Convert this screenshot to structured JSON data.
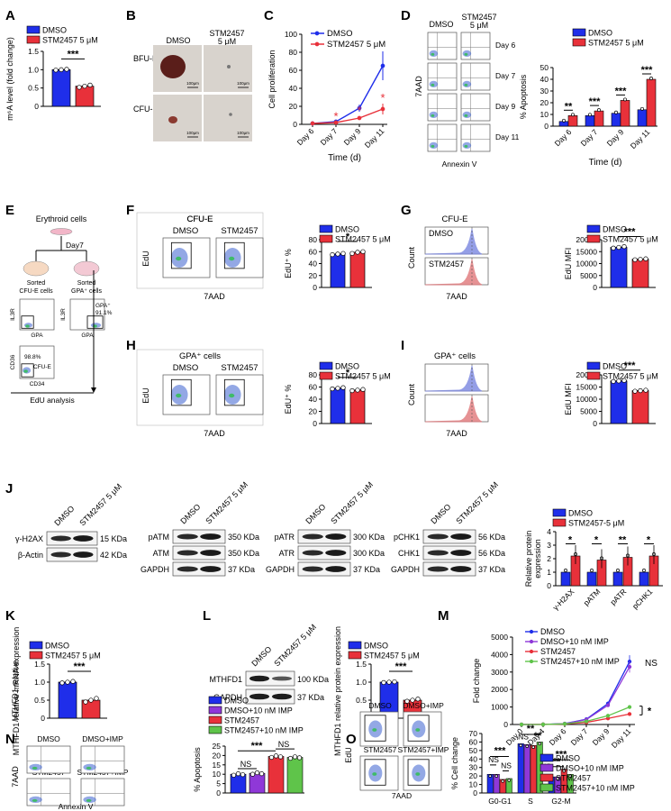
{
  "colors": {
    "dmso": "#1f2eea",
    "stm": "#e8313a",
    "dmso_imp": "#8f38d8",
    "stm_imp": "#5fc44a",
    "axis": "#000000",
    "flow_dot": "#3a60d0",
    "hist_blue": "#7a86e0",
    "hist_red": "#e0787a"
  },
  "panel_letters": [
    "A",
    "B",
    "C",
    "D",
    "E",
    "F",
    "G",
    "H",
    "I",
    "J",
    "K",
    "L",
    "M",
    "N",
    "O"
  ],
  "chart_data": [
    {
      "id": "A",
      "type": "bar",
      "ylabel": "m⁶A level (fold change)",
      "ylim": [
        0,
        1.5
      ],
      "yticks": [
        "0",
        "0.5",
        "1.0",
        "1.5"
      ],
      "legend": [
        "DMSO",
        "STM2457 5 μM"
      ],
      "values": [
        1.0,
        0.55
      ],
      "sig": "***",
      "points": [
        [
          0.99,
          1.0,
          1.01
        ],
        [
          0.52,
          0.55,
          0.58
        ]
      ]
    },
    {
      "id": "C",
      "type": "line",
      "ylabel": "Cell proliferation",
      "xlabel": "Time (d)",
      "x": [
        "Day 6",
        "Day 7",
        "Day 9",
        "Day 11"
      ],
      "ylim": [
        0,
        100
      ],
      "yticks": [
        "0",
        "20",
        "40",
        "60",
        "80",
        "100"
      ],
      "series": [
        {
          "name": "DMSO",
          "values": [
            1,
            3,
            18,
            65
          ],
          "err": [
            0.3,
            1,
            4,
            16
          ]
        },
        {
          "name": "STM2457 5 μM",
          "values": [
            1,
            2,
            7,
            17
          ],
          "err": [
            0.3,
            0.5,
            2,
            6
          ]
        }
      ],
      "sig": [
        "*",
        "*",
        "*"
      ]
    },
    {
      "id": "D",
      "type": "bar",
      "ylabel": "% Apoptosis",
      "xlabel": "Time (d)",
      "categories": [
        "Day 6",
        "Day 7",
        "Day 9",
        "Day 11"
      ],
      "ylim": [
        0,
        50
      ],
      "yticks": [
        "0",
        "10",
        "20",
        "30",
        "40",
        "50"
      ],
      "legend": [
        "DMSO",
        "STM2457 5 μM"
      ],
      "series": [
        {
          "name": "DMSO",
          "values": [
            4,
            9,
            11,
            14
          ]
        },
        {
          "name": "STM2457 5 μM",
          "values": [
            9,
            13,
            22,
            40
          ]
        }
      ],
      "sig": [
        "**",
        "***",
        "***",
        "***"
      ]
    },
    {
      "id": "F",
      "type": "bar",
      "ylabel": "EdU⁺ %",
      "ylim": [
        0,
        80
      ],
      "yticks": [
        "0",
        "20",
        "40",
        "60",
        "80"
      ],
      "legend": [
        "DMSO",
        "STM2457 5 μM"
      ],
      "values": [
        56,
        59
      ],
      "sig": "*",
      "points": [
        [
          55,
          56,
          57
        ],
        [
          57,
          59,
          60
        ]
      ]
    },
    {
      "id": "G",
      "type": "bar",
      "ylabel": "EdU MFI",
      "ylim": [
        0,
        20000
      ],
      "yticks": [
        "0",
        "5000",
        "10000",
        "15000",
        "20000"
      ],
      "legend": [
        "DMSO",
        "STM2457 5 μM"
      ],
      "values": [
        16800,
        11800
      ],
      "sig": "***",
      "points": [
        [
          16500,
          16800,
          17100
        ],
        [
          11600,
          11800,
          12000
        ]
      ]
    },
    {
      "id": "H",
      "type": "bar",
      "ylabel": "EdU⁺ %",
      "ylim": [
        0,
        80
      ],
      "yticks": [
        "0",
        "20",
        "40",
        "60",
        "80"
      ],
      "legend": [
        "DMSO",
        "STM2457 5 μM"
      ],
      "values": [
        58,
        55
      ],
      "sig": "*",
      "points": [
        [
          57,
          58,
          59
        ],
        [
          54,
          55,
          56
        ]
      ]
    },
    {
      "id": "I",
      "type": "bar",
      "ylabel": "EdU MFI",
      "ylim": [
        0,
        20000
      ],
      "yticks": [
        "0",
        "5000",
        "10000",
        "15000",
        "20000"
      ],
      "legend": [
        "DMSO",
        "STM2457 5 μM"
      ],
      "values": [
        17500,
        13500
      ],
      "sig": "***",
      "points": [
        [
          17300,
          17500,
          17700
        ],
        [
          13300,
          13500,
          13700
        ]
      ]
    },
    {
      "id": "J",
      "type": "bar",
      "ylabel": "Relative protein expression",
      "ylim": [
        0,
        4
      ],
      "yticks": [
        "0",
        "1",
        "2",
        "3",
        "4"
      ],
      "categories": [
        "γ-H2AX",
        "pATM",
        "pATR",
        "pCHK1"
      ],
      "legend": [
        "DMSO",
        "STM2457-5 μM"
      ],
      "series": [
        {
          "name": "DMSO",
          "values": [
            1,
            1,
            1,
            1
          ]
        },
        {
          "name": "STM2457-5 μM",
          "values": [
            2.2,
            1.9,
            2.1,
            2.2
          ]
        }
      ],
      "sig": [
        "*",
        "*",
        "**",
        "*"
      ]
    },
    {
      "id": "K",
      "type": "bar",
      "ylabel": "MTHFD1 relative mRNA expression",
      "ylim": [
        0,
        1.5
      ],
      "yticks": [
        "0",
        "0.5",
        "1.0",
        "1.5"
      ],
      "legend": [
        "DMSO",
        "STM2457 5 μM"
      ],
      "values": [
        1.0,
        0.5
      ],
      "sig": "***",
      "points": [
        [
          0.98,
          1.0,
          1.02
        ],
        [
          0.45,
          0.5,
          0.55
        ]
      ]
    },
    {
      "id": "L",
      "type": "bar",
      "ylabel": "MTHFD1 relative protein expression",
      "ylim": [
        0,
        1.5
      ],
      "yticks": [
        "0",
        "0.5",
        "1.0",
        "1.5"
      ],
      "legend": [
        "DMSO",
        "STM2457 5 μM"
      ],
      "values": [
        1.0,
        0.5
      ],
      "sig": "***",
      "points": [
        [
          0.99,
          1.0,
          1.01
        ],
        [
          0.47,
          0.5,
          0.53
        ]
      ]
    },
    {
      "id": "M",
      "type": "line",
      "ylabel": "Fold change",
      "ylim": [
        0,
        5000
      ],
      "yticks": [
        "0",
        "1000",
        "2000",
        "3000",
        "4000",
        "5000"
      ],
      "x": [
        "Day 0",
        "Day 4",
        "Day 6",
        "Day 7",
        "Day 9",
        "Day 11"
      ],
      "series": [
        {
          "name": "DMSO",
          "values": [
            1,
            5,
            50,
            300,
            1200,
            3600
          ]
        },
        {
          "name": "DMSO+10 nM IMP",
          "values": [
            1,
            5,
            45,
            280,
            1100,
            3300
          ]
        },
        {
          "name": "STM2457",
          "values": [
            1,
            4,
            30,
            120,
            350,
            600
          ]
        },
        {
          "name": "STM2457+10 nM IMP",
          "values": [
            1,
            4,
            35,
            180,
            500,
            1000
          ]
        }
      ],
      "annotations": [
        "NS",
        "*"
      ]
    },
    {
      "id": "N",
      "type": "bar",
      "ylabel": "% Apoptosis",
      "ylim": [
        0,
        25
      ],
      "yticks": [
        "0",
        "5",
        "10",
        "15",
        "20",
        "25"
      ],
      "legend": [
        "DMSO",
        "DMSO+10 nM IMP",
        "STM2457",
        "STM2457+10 nM IMP"
      ],
      "values": [
        10,
        10.5,
        19.5,
        19
      ],
      "sig": [
        "NS",
        "***",
        "NS"
      ]
    },
    {
      "id": "O",
      "type": "bar",
      "ylabel": "% Cell change",
      "ylim": [
        0,
        70
      ],
      "yticks": [
        "0",
        "10",
        "20",
        "30",
        "40",
        "50",
        "60",
        "70"
      ],
      "categories": [
        "G0-G1",
        "S",
        "G2-M"
      ],
      "legend": [
        "DMSO",
        "DMSO+10 nM IMP",
        "STM2457",
        "STM2457+10 nM IMP"
      ],
      "series": [
        {
          "name": "DMSO",
          "values": [
            22,
            58,
            19
          ]
        },
        {
          "name": "DMSO+10 nM IMP",
          "values": [
            22,
            57,
            19
          ]
        },
        {
          "name": "STM2457",
          "values": [
            16,
            56,
            28
          ]
        },
        {
          "name": "STM2457+10 nM IMP",
          "values": [
            17,
            60,
            22
          ]
        }
      ],
      "sig_top": [
        "***",
        "**",
        "***"
      ],
      "sig_low": [
        "NS",
        "NS",
        "NS"
      ],
      "sig_s": [
        "NS",
        "**"
      ],
      "sig_g2": [
        "***"
      ]
    }
  ],
  "panelB": {
    "cols": [
      "DMSO",
      "STM2457\n5 μM"
    ],
    "rows": [
      "BFU-E",
      "CFU-E"
    ],
    "scale": "100μm"
  },
  "panelD": {
    "header": [
      "DMSO",
      "STM2457\n5 μM"
    ],
    "days": [
      "Day 6",
      "Day 7",
      "Day 9",
      "Day 11"
    ],
    "ylabel": "7AAD",
    "xlabel": "Annexin V"
  },
  "panelE": {
    "top": "Erythroid cells",
    "day": "Day7",
    "sorted1": "Sorted CFU-E cells",
    "sorted2": "Sorted GPA⁺ cells",
    "gpa_pct": "GPA⁺ 91.1%",
    "cfue_pct": "98.8%",
    "cfue": "CFU-E",
    "il3r": "IL3R",
    "gpa": "GPA",
    "cd36": "CD36",
    "cd34": "CD34",
    "edu": "EdU analysis"
  },
  "panelF": {
    "title": "CFU-E",
    "c1": "DMSO",
    "c2": "STM2457",
    "ylabel": "EdU",
    "xlabel": "7AAD"
  },
  "panelG": {
    "title": "CFU-E",
    "r1": "DMSO",
    "r2": "STM2457",
    "ylabel": "Count",
    "xlabel": "7AAD"
  },
  "panelH": {
    "title": "GPA⁺ cells",
    "c1": "DMSO",
    "c2": "STM2457",
    "ylabel": "EdU",
    "xlabel": "7AAD"
  },
  "panelI": {
    "title": "GPA⁺ cells",
    "ylabel": "Count",
    "xlabel": "7AAD"
  },
  "panelJ": {
    "col_labels": [
      "DMSO",
      "STM2457 5 μM"
    ],
    "blots": [
      {
        "rows": [
          "γ-H2AX",
          "β-Actin"
        ],
        "kda": [
          "15 KDa",
          "42 KDa"
        ]
      },
      {
        "rows": [
          "pATM",
          "ATM",
          "GAPDH"
        ],
        "kda": [
          "350 KDa",
          "350 KDa",
          "37 KDa"
        ]
      },
      {
        "rows": [
          "pATR",
          "ATR",
          "GAPDH"
        ],
        "kda": [
          "300 KDa",
          "300 KDa",
          "37 KDa"
        ]
      },
      {
        "rows": [
          "pCHK1",
          "CHK1",
          "GAPDH"
        ],
        "kda": [
          "56 KDa",
          "56 KDa",
          "37 KDa"
        ]
      }
    ]
  },
  "panelL_blot": {
    "rows": [
      "MTHFD1",
      "GAPDH"
    ],
    "kda": [
      "100 KDa",
      "37 KDa"
    ],
    "col_labels": [
      "DMSO",
      "STM2457 5 μM"
    ]
  },
  "panelN": {
    "labels": [
      "DMSO",
      "DMSO+IMP",
      "STM2457",
      "STM2457+IMP"
    ],
    "ylabel": "7AAD",
    "xlabel": "Annexin V"
  },
  "panelO": {
    "labels": [
      "DMSO",
      "DMSO+IMP",
      "STM2457",
      "STM2457+IMP"
    ],
    "ylabel": "EdU",
    "xlabel": "7AAD"
  }
}
